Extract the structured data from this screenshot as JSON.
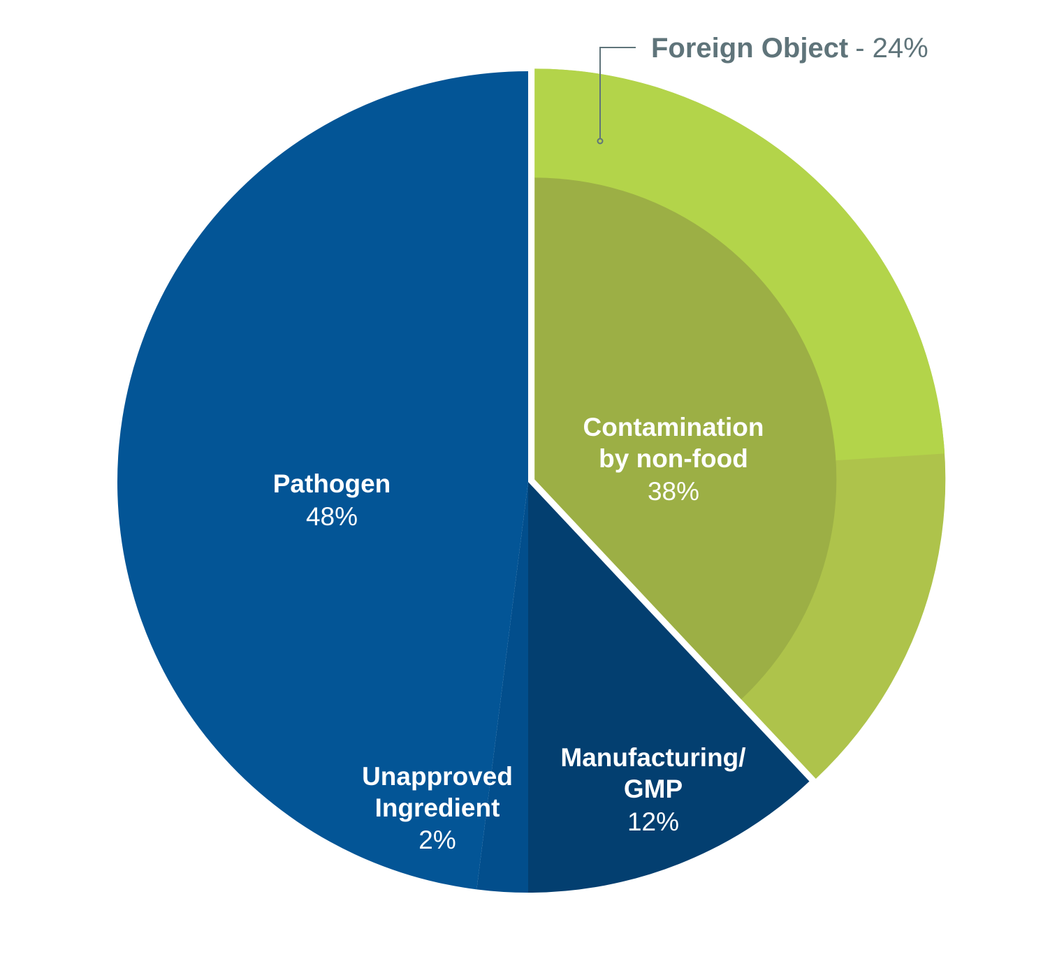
{
  "chart_data": {
    "type": "pie",
    "start": "top",
    "direction": "clockwise",
    "slices": [
      {
        "label_lines": [
          "Contamination",
          "by non-food"
        ],
        "value_label": "38%",
        "value": 38,
        "color": "#9caf45",
        "exploded": true,
        "sub": {
          "label": "Foreign Object",
          "value_label": "- 24%",
          "value": 24,
          "color": "#b3d44a",
          "rest_color": "#aec34b"
        }
      },
      {
        "label_lines": [
          "Manufacturing/",
          "GMP"
        ],
        "value_label": "12%",
        "value": 12,
        "color": "#033f70"
      },
      {
        "label_lines": [
          "Unapproved",
          "Ingredient"
        ],
        "value_label": "2%",
        "value": 2,
        "color": "#024e8c"
      },
      {
        "label_lines": [
          "Pathogen"
        ],
        "value_label": "48%",
        "value": 48,
        "color": "#035596"
      }
    ],
    "callout_color": "#5f747a"
  }
}
